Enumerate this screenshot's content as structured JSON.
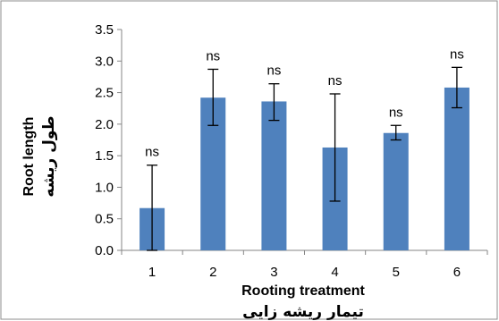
{
  "colors": {
    "bar": "#4f81bd",
    "axis": "#868686",
    "error_bar": "#000000",
    "frame": "#8c8c8c"
  },
  "chart_data": {
    "type": "bar",
    "categories": [
      "1",
      "2",
      "3",
      "4",
      "5",
      "6"
    ],
    "values": [
      0.67,
      2.42,
      2.36,
      1.63,
      1.86,
      2.58
    ],
    "error_low": [
      0.0,
      1.98,
      2.06,
      0.78,
      1.75,
      2.26
    ],
    "error_high": [
      1.35,
      2.87,
      2.64,
      2.48,
      1.98,
      2.9
    ],
    "annotations": [
      "ns",
      "ns",
      "ns",
      "ns",
      "ns",
      "ns"
    ],
    "ylim": [
      0,
      3.5
    ],
    "yticks": [
      "0.0",
      "0.5",
      "1.0",
      "1.5",
      "2.0",
      "2.5",
      "3.0",
      "3.5"
    ],
    "xlabel": "Rooting treatment",
    "xlabel_fa": "تیمار ریشه زایی",
    "ylabel": "Root length",
    "ylabel_fa": "طول ریشه",
    "grid": false
  }
}
